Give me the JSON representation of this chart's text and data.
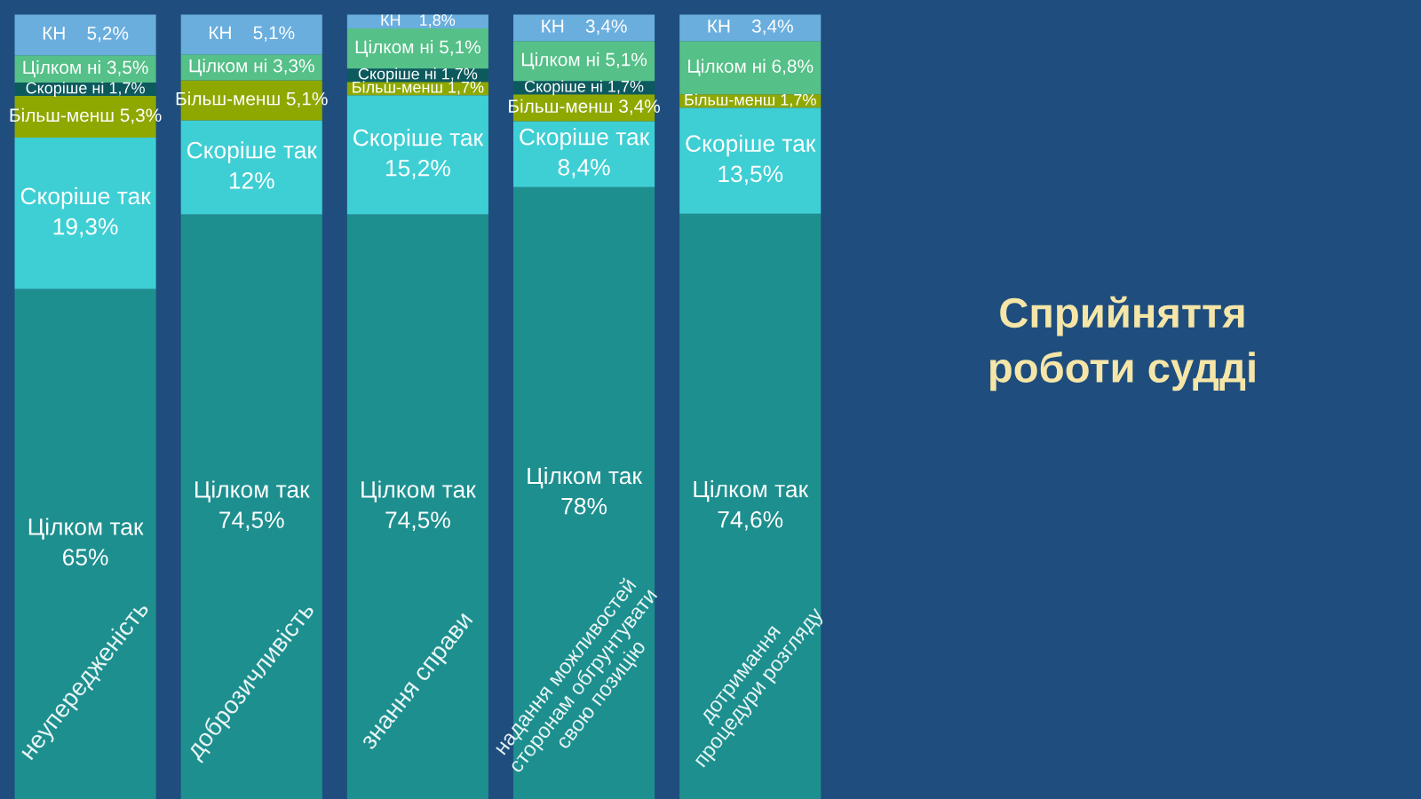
{
  "chart_data": {
    "type": "bar",
    "stacked": true,
    "title": "Сприйняття\nроботи судді",
    "categories": [
      "неупередженість",
      "доброзичливість",
      "знання справи",
      "надання можливостей\nсторонам обгрунтувати\nсвою позицію",
      "дотримання\nпроцедури розгляду"
    ],
    "series": [
      {
        "color": "#1e8f8f",
        "values": [
          65,
          74.5,
          74.5,
          78,
          74.6
        ],
        "value_labels": [
          "Цілком так\n65%",
          "Цілком так\n74,5%",
          "Цілком так\n74,5%",
          "Цілком так\n78%",
          "Цілком так\n74,6%"
        ]
      },
      {
        "color": "#3ecfd4",
        "values": [
          19.3,
          12,
          15.2,
          8.4,
          13.5
        ],
        "value_labels": [
          "Скоріше так\n19,3%",
          "Скоріше так\n12%",
          "Скоріше так\n15,2%",
          "Скоріше так\n8,4%",
          "Скоріше так\n13,5%"
        ]
      },
      {
        "color": "#8fa800",
        "values": [
          5.3,
          5.1,
          1.7,
          3.4,
          1.7
        ],
        "value_labels": [
          "Більш-менш 5,3%",
          "Більш-менш 5,1%",
          "Більш-менш 1,7%",
          "Більш-менш 3,4%",
          "Більш-менш 1,7%"
        ]
      },
      {
        "color": "#0d5a5e",
        "values": [
          1.7,
          null,
          1.7,
          1.7,
          null
        ],
        "value_labels": [
          "Скоріше ні 1,7%",
          null,
          "Скоріше ні 1,7%",
          "Скоріше ні 1,7%",
          null
        ]
      },
      {
        "color": "#55c088",
        "values": [
          3.5,
          3.3,
          5.1,
          5.1,
          6.8
        ],
        "value_labels": [
          "Цілком ні 3,5%",
          "Цілком ні 3,3%",
          "Цілком ні 5,1%",
          "Цілком ні 5,1%",
          "Цілком ні 6,8%"
        ]
      },
      {
        "color": "#6aaede",
        "values": [
          5.2,
          5.1,
          1.8,
          3.4,
          3.4
        ],
        "value_labels": [
          "КН    5,2%",
          "КН    5,1%",
          "КН    1,8%",
          "КН    3,4%",
          "КН    3,4%"
        ]
      }
    ]
  }
}
